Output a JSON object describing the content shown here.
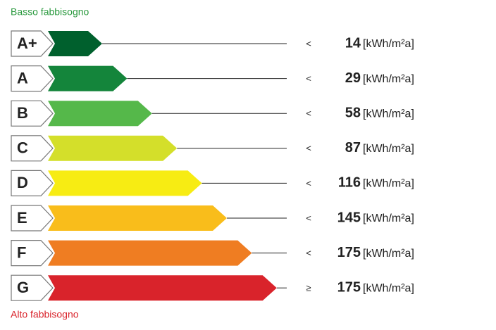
{
  "header": {
    "title": "Basso fabbisogno"
  },
  "footer": {
    "title": "Alto fabbisogno"
  },
  "rows": [
    {
      "class": "A+",
      "color": "#00602d",
      "comparator": "<",
      "value": 14,
      "unit": "[kWh/m²a]"
    },
    {
      "class": "A",
      "color": "#14853b",
      "comparator": "<",
      "value": 29,
      "unit": "[kWh/m²a]"
    },
    {
      "class": "B",
      "color": "#55b84a",
      "comparator": "<",
      "value": 58,
      "unit": "[kWh/m²a]"
    },
    {
      "class": "C",
      "color": "#d4df2a",
      "comparator": "<",
      "value": 87,
      "unit": "[kWh/m²a]"
    },
    {
      "class": "D",
      "color": "#f7ec13",
      "comparator": "<",
      "value": 116,
      "unit": "[kWh/m²a]"
    },
    {
      "class": "E",
      "color": "#f9bd1b",
      "comparator": "<",
      "value": 145,
      "unit": "[kWh/m²a]"
    },
    {
      "class": "F",
      "color": "#ef7d22",
      "comparator": "<",
      "value": 175,
      "unit": "[kWh/m²a]"
    },
    {
      "class": "G",
      "color": "#d9232b",
      "comparator": "≥",
      "value": 175,
      "unit": "[kWh/m²a]"
    }
  ]
}
